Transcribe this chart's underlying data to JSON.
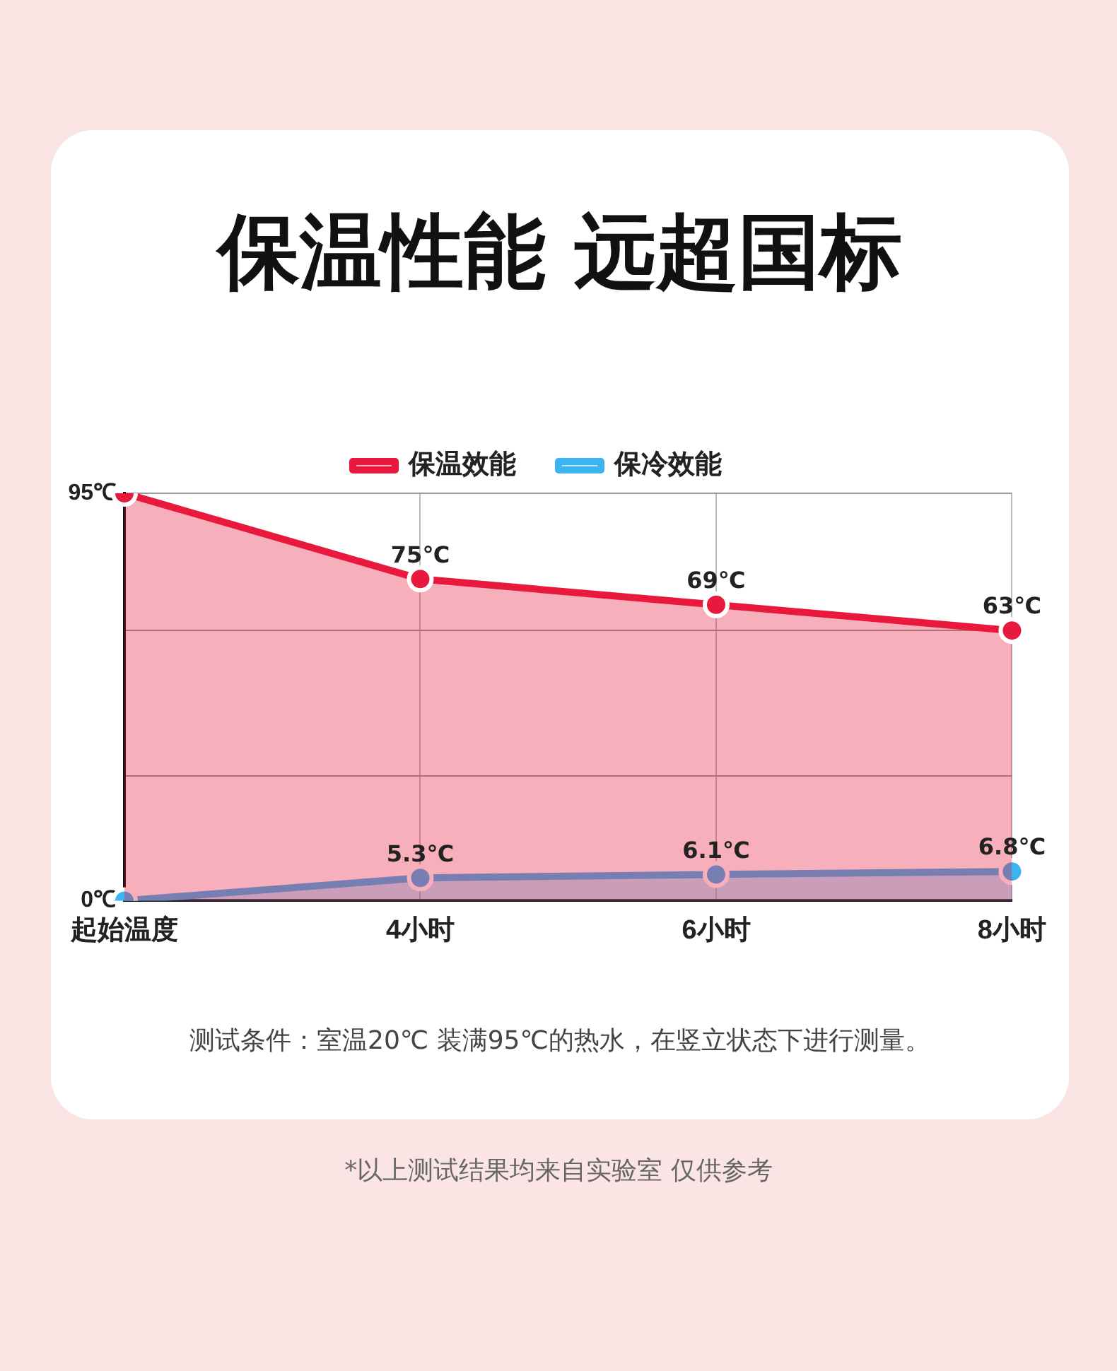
{
  "chart_data": {
    "type": "area",
    "title": "保温性能  远超国标",
    "categories": [
      "起始温度",
      "4小时",
      "6小时",
      "8小时"
    ],
    "series": [
      {
        "name": "保温效能",
        "color": "#e8193c",
        "values": [
          95,
          75,
          69,
          63
        ],
        "value_labels": [
          null,
          "75℃",
          "69℃",
          "63℃"
        ]
      },
      {
        "name": "保冷效能",
        "color": "#3bb4f0",
        "values": [
          0,
          5.3,
          6.1,
          6.8
        ],
        "value_labels": [
          null,
          "5.3℃",
          "6.1℃",
          "6.8℃"
        ]
      }
    ],
    "ylim": [
      0,
      95
    ],
    "yticks": [
      {
        "value": 0,
        "label": "0℃"
      },
      {
        "value": 29,
        "label": null
      },
      {
        "value": 63,
        "label": null
      },
      {
        "value": 95,
        "label": "95℃"
      }
    ],
    "grid": true,
    "legend": "top",
    "marker": "circle",
    "line_style": "solid",
    "annotations": [
      "测试条件：室温20℃ 装满95℃的热水，在竖立状态下进行测量。",
      "*以上测试结果均来自实验室 仅供参考"
    ]
  }
}
